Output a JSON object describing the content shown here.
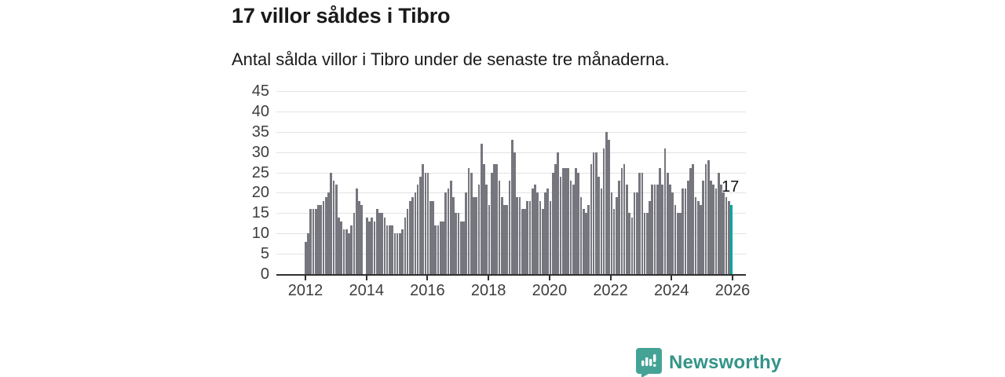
{
  "title": "17 villor såldes i Tibro",
  "subtitle": "Antal sålda villor i Tibro under de senaste tre månaderna.",
  "annotation": {
    "label": "17"
  },
  "branding": {
    "name": "Newsworthy"
  },
  "colors": {
    "bar": "#76767e",
    "highlight": "#00a89d",
    "grid": "#e2e2e2",
    "axis": "#303030",
    "text": "#1a1a1a",
    "logo_icon": "#45a396",
    "logo_text": "#339488"
  },
  "chart_data": {
    "type": "bar",
    "title": "17 villor såldes i Tibro",
    "subtitle": "Antal sålda villor i Tibro under de senaste tre månaderna.",
    "unit": "sålda villor (rullande tre månader)",
    "frequency": "monthly",
    "x_start": "2012-01",
    "x_end": "2025-12",
    "values": [
      8,
      10,
      16,
      16,
      16,
      17,
      17,
      18,
      19,
      20,
      25,
      23,
      22,
      14,
      13,
      11,
      11,
      10,
      12,
      15,
      21,
      18,
      17,
      0,
      14,
      13,
      14,
      13,
      16,
      15,
      15,
      14,
      12,
      12,
      12,
      10,
      10,
      10,
      11,
      14,
      16,
      18,
      19,
      20,
      22,
      24,
      27,
      25,
      25,
      18,
      18,
      12,
      12,
      13,
      13,
      20,
      21,
      23,
      19,
      15,
      15,
      13,
      13,
      20,
      26,
      25,
      19,
      19,
      22,
      32,
      27,
      22,
      17,
      25,
      27,
      27,
      23,
      19,
      17,
      17,
      23,
      33,
      30,
      19,
      19,
      16,
      16,
      18,
      18,
      21,
      22,
      20,
      18,
      16,
      20,
      21,
      18,
      25,
      27,
      30,
      24,
      26,
      26,
      26,
      23,
      22,
      26,
      25,
      19,
      16,
      15,
      17,
      27,
      30,
      30,
      24,
      21,
      31,
      35,
      33,
      20,
      16,
      19,
      23,
      26,
      27,
      22,
      15,
      14,
      20,
      20,
      25,
      25,
      15,
      15,
      18,
      22,
      22,
      22,
      26,
      22,
      31,
      25,
      22,
      20,
      17,
      15,
      15,
      21,
      21,
      23,
      26,
      27,
      19,
      18,
      17,
      23,
      27,
      28,
      23,
      22,
      21,
      25,
      22,
      20,
      19,
      18,
      17
    ],
    "highlight_index": 167,
    "highlight_value": 17,
    "ylim": [
      0,
      45
    ],
    "y_ticks": [
      0,
      5,
      10,
      15,
      20,
      25,
      30,
      35,
      40,
      45
    ],
    "x_ticks": [
      2012,
      2014,
      2016,
      2018,
      2020,
      2022,
      2024,
      2026
    ],
    "grid": true,
    "legend": false
  }
}
